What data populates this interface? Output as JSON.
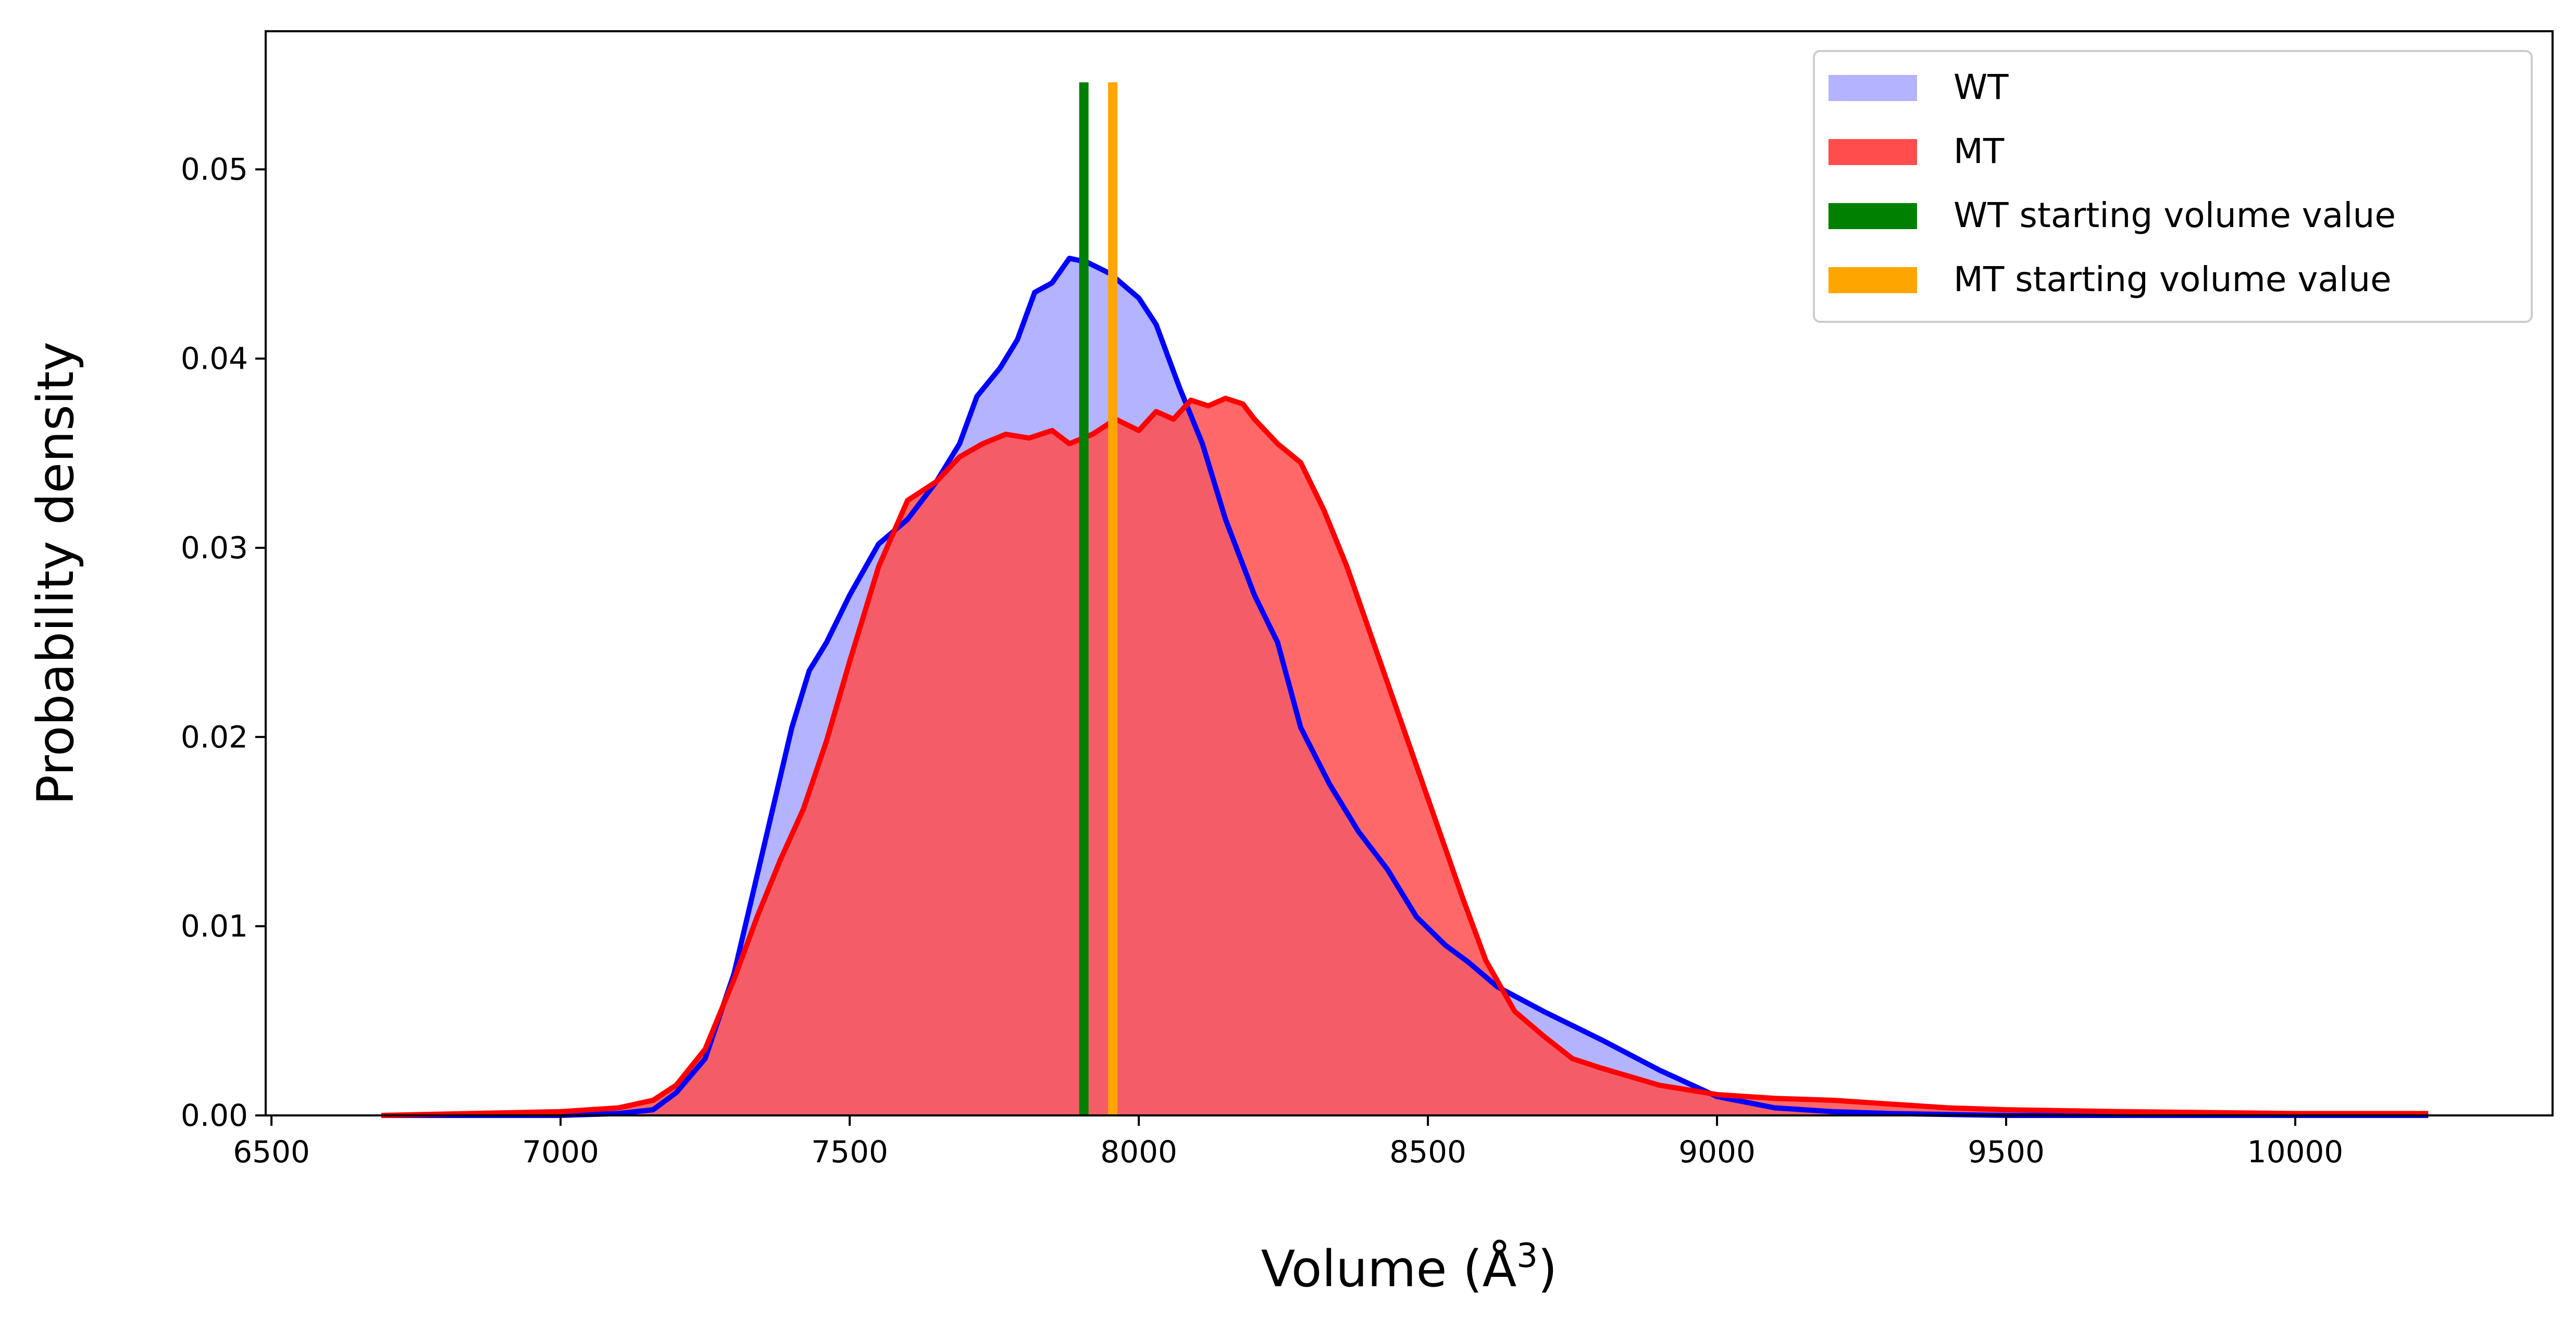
{
  "chart_data": {
    "type": "area",
    "title": "",
    "xlabel": "Volume (Å",
    "xlabel_sup": "3",
    "xlabel_close": ")",
    "ylabel": "Probability density",
    "xlim": [
      6490,
      10445
    ],
    "ylim": [
      0,
      0.0573
    ],
    "xticks": [
      6500,
      7000,
      7500,
      8000,
      8500,
      9000,
      9500,
      10000
    ],
    "xtick_labels": [
      "6500",
      "7000",
      "7500",
      "8000",
      "8500",
      "9000",
      "9500",
      "10000"
    ],
    "yticks": [
      0,
      0.01,
      0.02,
      0.03,
      0.04,
      0.05
    ],
    "ytick_labels": [
      "0.00",
      "0.01",
      "0.02",
      "0.03",
      "0.04",
      "0.05"
    ],
    "grid": false,
    "legend_position": "top-right",
    "series": [
      {
        "name": "WT",
        "fill_color": "#b3b3ff",
        "line_color": "#0000ff",
        "x": [
          6690,
          7000,
          7100,
          7160,
          7200,
          7250,
          7300,
          7350,
          7400,
          7430,
          7460,
          7500,
          7550,
          7600,
          7650,
          7690,
          7720,
          7760,
          7790,
          7820,
          7850,
          7880,
          7910,
          7950,
          8000,
          8030,
          8070,
          8110,
          8150,
          8200,
          8240,
          8280,
          8330,
          8380,
          8430,
          8480,
          8530,
          8570,
          8620,
          8700,
          8800,
          8900,
          9000,
          9100,
          9200,
          9300,
          9500,
          9800,
          10230
        ],
        "y": [
          0.0,
          0.0,
          0.0001,
          0.0003,
          0.0012,
          0.003,
          0.0075,
          0.014,
          0.0205,
          0.0235,
          0.025,
          0.0275,
          0.0302,
          0.0315,
          0.0335,
          0.0355,
          0.038,
          0.0395,
          0.041,
          0.0435,
          0.044,
          0.0453,
          0.0451,
          0.0445,
          0.0432,
          0.0418,
          0.0385,
          0.0355,
          0.0315,
          0.0275,
          0.025,
          0.0205,
          0.0175,
          0.015,
          0.013,
          0.0105,
          0.009,
          0.0081,
          0.0068,
          0.0055,
          0.004,
          0.0024,
          0.001,
          0.0004,
          0.0002,
          0.0001,
          0.0,
          0.0,
          0.0
        ]
      },
      {
        "name": "MT",
        "fill_color": "#ff4d4d",
        "line_color": "#ff0000",
        "x": [
          6690,
          7000,
          7100,
          7160,
          7200,
          7250,
          7300,
          7340,
          7380,
          7420,
          7460,
          7500,
          7550,
          7600,
          7650,
          7690,
          7730,
          7770,
          7810,
          7850,
          7880,
          7920,
          7960,
          8000,
          8030,
          8060,
          8090,
          8120,
          8150,
          8180,
          8200,
          8240,
          8280,
          8320,
          8360,
          8400,
          8440,
          8480,
          8520,
          8560,
          8600,
          8650,
          8700,
          8750,
          8800,
          8900,
          9000,
          9100,
          9200,
          9300,
          9400,
          9500,
          9700,
          10000,
          10230
        ],
        "y": [
          0.0,
          0.0002,
          0.0004,
          0.0008,
          0.0016,
          0.0035,
          0.0072,
          0.0105,
          0.0135,
          0.0162,
          0.0198,
          0.024,
          0.029,
          0.0325,
          0.0335,
          0.0348,
          0.0355,
          0.036,
          0.0358,
          0.0362,
          0.0355,
          0.036,
          0.0368,
          0.0362,
          0.0372,
          0.0368,
          0.0378,
          0.0375,
          0.0379,
          0.0376,
          0.0368,
          0.0355,
          0.0345,
          0.032,
          0.029,
          0.0255,
          0.022,
          0.0185,
          0.015,
          0.0115,
          0.0082,
          0.0055,
          0.0042,
          0.003,
          0.0025,
          0.0016,
          0.0011,
          0.0009,
          0.0008,
          0.0006,
          0.0004,
          0.0003,
          0.0002,
          0.0001,
          0.0001
        ]
      }
    ],
    "vlines": [
      {
        "name": "WT starting volume value",
        "x": 7905,
        "ymax": 0.0546,
        "color": "#008000"
      },
      {
        "name": "MT starting volume value",
        "x": 7955,
        "ymax": 0.0546,
        "color": "#ffa500"
      }
    ]
  }
}
